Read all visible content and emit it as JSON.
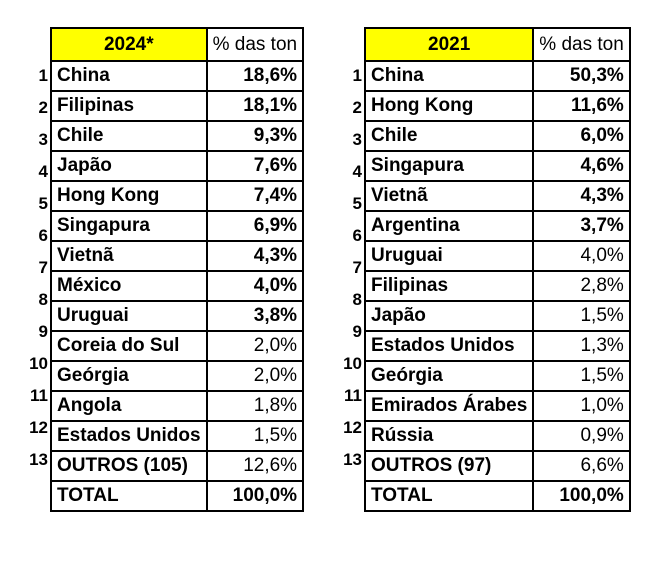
{
  "tables": [
    {
      "year": "2024*",
      "pct_header": "% das ton",
      "rows": [
        {
          "rank": "1",
          "name": "China",
          "pct": "18,6%",
          "bold": true
        },
        {
          "rank": "2",
          "name": "Filipinas",
          "pct": "18,1%",
          "bold": true
        },
        {
          "rank": "3",
          "name": "Chile",
          "pct": "9,3%",
          "bold": true
        },
        {
          "rank": "4",
          "name": "Japão",
          "pct": "7,6%",
          "bold": true
        },
        {
          "rank": "5",
          "name": "Hong Kong",
          "pct": "7,4%",
          "bold": true
        },
        {
          "rank": "6",
          "name": "Singapura",
          "pct": "6,9%",
          "bold": true
        },
        {
          "rank": "7",
          "name": "Vietnã",
          "pct": "4,3%",
          "bold": true
        },
        {
          "rank": "8",
          "name": "México",
          "pct": "4,0%",
          "bold": true
        },
        {
          "rank": "9",
          "name": "Uruguai",
          "pct": "3,8%",
          "bold": true
        },
        {
          "rank": "10",
          "name": "Coreia do Sul",
          "pct": "2,0%",
          "bold": false
        },
        {
          "rank": "11",
          "name": "Geórgia",
          "pct": "2,0%",
          "bold": false
        },
        {
          "rank": "12",
          "name": "Angola",
          "pct": "1,8%",
          "bold": false
        },
        {
          "rank": "13",
          "name": "Estados Unidos",
          "pct": "1,5%",
          "bold": false
        },
        {
          "rank": "",
          "name": "OUTROS (105)",
          "pct": "12,6%",
          "bold": false
        },
        {
          "rank": "",
          "name": "TOTAL",
          "pct": "100,0%",
          "bold": true
        }
      ]
    },
    {
      "year": "2021",
      "pct_header": "% das ton",
      "rows": [
        {
          "rank": "1",
          "name": "China",
          "pct": "50,3%",
          "bold": true
        },
        {
          "rank": "2",
          "name": "Hong Kong",
          "pct": "11,6%",
          "bold": true
        },
        {
          "rank": "3",
          "name": "Chile",
          "pct": "6,0%",
          "bold": true
        },
        {
          "rank": "4",
          "name": "Singapura",
          "pct": "4,6%",
          "bold": true
        },
        {
          "rank": "5",
          "name": "Vietnã",
          "pct": "4,3%",
          "bold": true
        },
        {
          "rank": "6",
          "name": "Argentina",
          "pct": "3,7%",
          "bold": true
        },
        {
          "rank": "7",
          "name": "Uruguai",
          "pct": "4,0%",
          "bold": false
        },
        {
          "rank": "8",
          "name": "Filipinas",
          "pct": "2,8%",
          "bold": false
        },
        {
          "rank": "9",
          "name": "Japão",
          "pct": "1,5%",
          "bold": false
        },
        {
          "rank": "10",
          "name": "Estados Unidos",
          "pct": "1,3%",
          "bold": false
        },
        {
          "rank": "11",
          "name": "Geórgia",
          "pct": "1,5%",
          "bold": false
        },
        {
          "rank": "12",
          "name": "Emirados Árabes",
          "pct": "1,0%",
          "bold": false
        },
        {
          "rank": "13",
          "name": "Rússia",
          "pct": "0,9%",
          "bold": false
        },
        {
          "rank": "",
          "name": "OUTROS (97)",
          "pct": "6,6%",
          "bold": false
        },
        {
          "rank": "",
          "name": "TOTAL",
          "pct": "100,0%",
          "bold": true
        }
      ]
    }
  ],
  "colors": {
    "header_fill": "#ffff00",
    "border": "#000000"
  }
}
